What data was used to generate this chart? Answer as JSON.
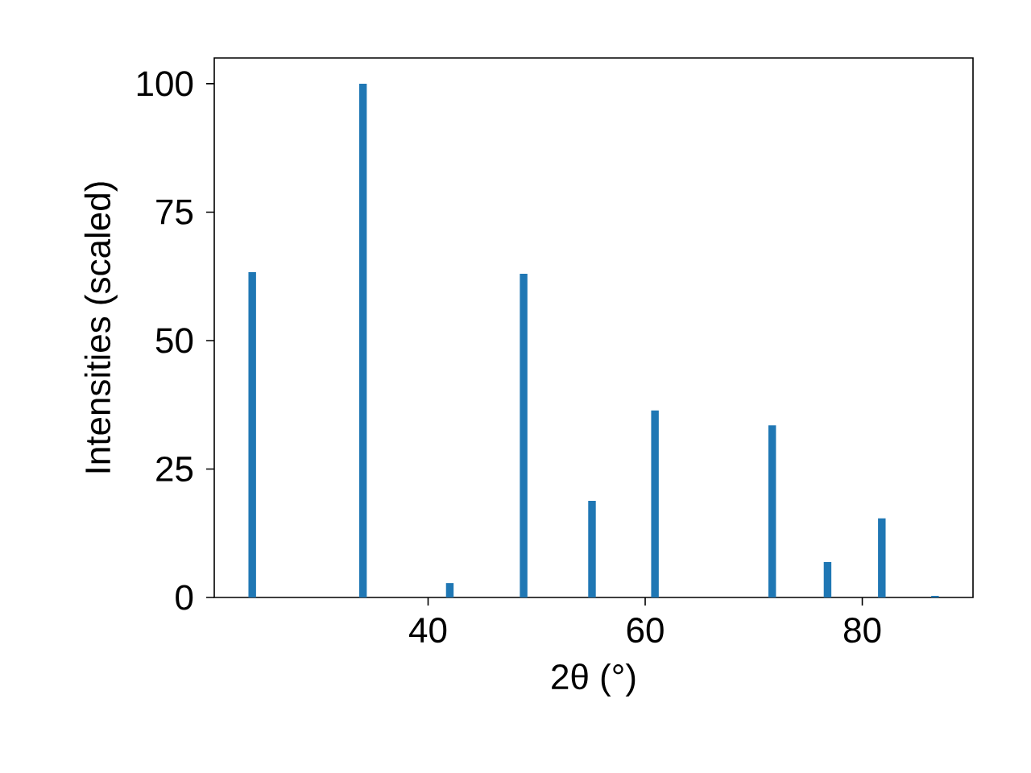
{
  "chart_data": {
    "type": "bar",
    "xlabel": "2θ (°)",
    "ylabel": "Intensities (scaled)",
    "x": [
      23.8,
      34.0,
      42.0,
      48.8,
      55.1,
      60.9,
      71.7,
      76.8,
      81.8,
      86.7
    ],
    "values": [
      63.3,
      100,
      2.8,
      63.0,
      18.8,
      36.4,
      33.5,
      6.9,
      15.4,
      0.3
    ],
    "color": "#1f77b4",
    "xlim": [
      20.3,
      90.2
    ],
    "ylim": [
      0,
      105
    ],
    "xticks": [
      40,
      60,
      80
    ],
    "yticks": [
      0,
      25,
      50,
      75,
      100
    ]
  }
}
